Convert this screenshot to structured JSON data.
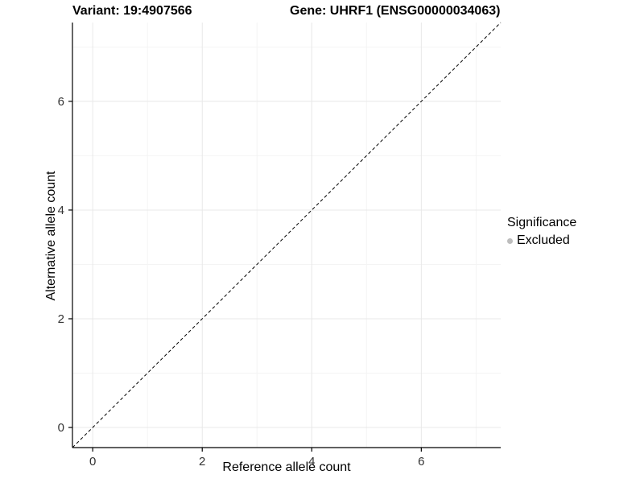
{
  "titles": {
    "variant": "Variant: 19:4907566",
    "gene": "Gene: UHRF1 (ENSG00000034063)"
  },
  "legend": {
    "title": "Significance",
    "items": [
      {
        "label": "Excluded",
        "color": "#bdbdbd",
        "marker": "dot"
      }
    ]
  },
  "colors": {
    "grid_major": "#e8e8e8",
    "grid_minor": "#f4f4f4",
    "axis_line": "#000000",
    "tick_label": "#333333",
    "reference_line": "#000000"
  },
  "chart_data": {
    "type": "scatter",
    "title": "Variant: 19:4907566   Gene: UHRF1 (ENSG00000034063)",
    "xlabel": "Reference allele count",
    "ylabel": "Alternative allele count",
    "xlim": [
      -0.37,
      7.45
    ],
    "ylim": [
      -0.37,
      7.45
    ],
    "x_ticks": [
      0,
      2,
      4,
      6
    ],
    "y_ticks": [
      0,
      2,
      4,
      6
    ],
    "x_minor_ticks": [
      1,
      3,
      5,
      7
    ],
    "y_minor_ticks": [
      1,
      3,
      5,
      7
    ],
    "grid": true,
    "legend_position": "right",
    "series": [
      {
        "name": "Excluded",
        "color": "#bdbdbd",
        "points": []
      }
    ],
    "reference_line": {
      "type": "identity",
      "style": "dashed",
      "from": [
        -0.37,
        -0.37
      ],
      "to": [
        7.45,
        7.45
      ]
    }
  }
}
